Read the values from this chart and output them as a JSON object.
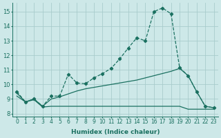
{
  "xlabel": "Humidex (Indice chaleur)",
  "xlim": [
    -0.5,
    23.5
  ],
  "ylim": [
    7.8,
    15.6
  ],
  "bg_color": "#cde8e8",
  "grid_color": "#a8cccc",
  "line_color": "#1a7060",
  "xticks": [
    0,
    1,
    2,
    3,
    4,
    5,
    6,
    7,
    8,
    9,
    10,
    11,
    12,
    13,
    14,
    15,
    16,
    17,
    18,
    19,
    20,
    21,
    22,
    23
  ],
  "yticks": [
    8,
    9,
    10,
    11,
    12,
    13,
    14,
    15
  ],
  "line1_x": [
    0,
    1,
    2,
    3,
    4,
    5,
    6,
    7,
    8,
    9,
    10,
    11,
    12,
    13,
    14,
    15,
    16,
    17,
    18,
    19,
    20,
    21,
    22,
    23
  ],
  "line1_y": [
    9.5,
    8.8,
    9.0,
    8.5,
    9.2,
    9.2,
    10.7,
    10.1,
    10.05,
    10.45,
    10.75,
    11.1,
    11.75,
    12.5,
    13.2,
    13.0,
    15.0,
    15.25,
    14.85,
    11.15,
    10.6,
    9.5,
    8.5,
    8.4
  ],
  "line2_x": [
    0,
    1,
    2,
    3,
    4,
    5,
    6,
    7,
    8,
    9,
    10,
    11,
    12,
    13,
    14,
    15,
    16,
    17,
    18,
    19,
    20,
    21,
    22,
    23
  ],
  "line2_y": [
    9.4,
    8.8,
    9.0,
    8.5,
    9.0,
    9.15,
    9.35,
    9.55,
    9.7,
    9.8,
    9.9,
    10.0,
    10.1,
    10.2,
    10.3,
    10.45,
    10.6,
    10.75,
    10.9,
    11.1,
    10.6,
    9.5,
    8.5,
    8.4
  ],
  "line3_x": [
    0,
    1,
    2,
    3,
    4,
    5,
    6,
    7,
    8,
    9,
    10,
    11,
    12,
    13,
    14,
    15,
    16,
    17,
    18,
    19,
    20,
    21,
    22,
    23
  ],
  "line3_y": [
    9.2,
    8.8,
    8.95,
    8.45,
    8.5,
    8.5,
    8.5,
    8.5,
    8.5,
    8.5,
    8.5,
    8.5,
    8.5,
    8.5,
    8.5,
    8.5,
    8.5,
    8.5,
    8.5,
    8.5,
    8.3,
    8.3,
    8.3,
    8.3
  ]
}
